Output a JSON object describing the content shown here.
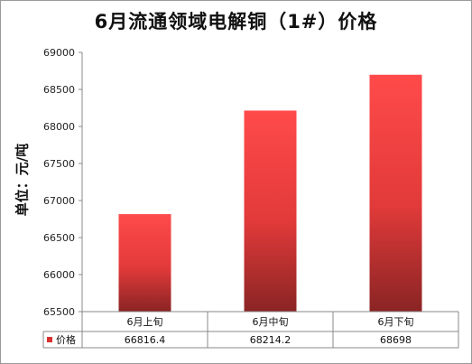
{
  "chart_data": {
    "type": "bar",
    "title": "6月流通领域电解铜（1#）价格",
    "ylabel": "单位：元/吨",
    "xlabel": "",
    "categories": [
      "6月上旬",
      "6月中旬",
      "6月下旬"
    ],
    "series": [
      {
        "name": "价格",
        "values": [
          66816.4,
          68214.2,
          68698
        ]
      }
    ],
    "ylim": [
      65500,
      69000
    ],
    "yticks": [
      65500,
      66000,
      66500,
      67000,
      67500,
      68000,
      68500,
      69000
    ],
    "grid": false,
    "legend": "data-table",
    "data_table": true,
    "colors": {
      "bar_top": "#ff4a4a",
      "bar_bottom": "#8a2424",
      "legend_key": "#d93030"
    }
  }
}
